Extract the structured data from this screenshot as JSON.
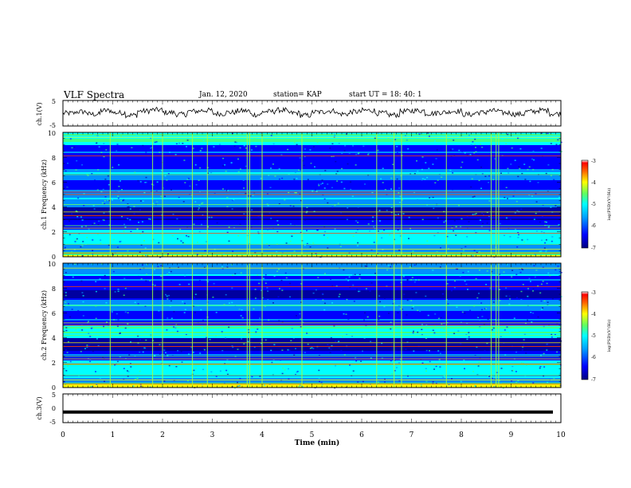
{
  "header": {
    "title": "VLF Spectra",
    "date": "Jan. 12, 2020",
    "station": "station= KAP",
    "start": "start UT = 18: 40: 1"
  },
  "colors": {
    "colormap": [
      "#0000a0",
      "#0000ff",
      "#0090ff",
      "#00ffff",
      "#40ff80",
      "#ffff00",
      "#ff8000",
      "#ff0000",
      "#ffffff"
    ],
    "trace": "#000000",
    "frame": "#000000"
  },
  "chart_data": [
    {
      "type": "line",
      "panel": "ch1-waveform",
      "ylabel": "ch.1(V)",
      "ylim": [
        -5,
        5
      ],
      "yticks": [
        "5",
        "-5"
      ],
      "xlim": [
        0,
        10
      ],
      "series": [
        {
          "values": [
            0.0,
            0.6,
            -0.4,
            1.1,
            0.2,
            -0.8,
            0.9,
            1.4,
            0.3,
            -0.5,
            0.8,
            1.2,
            -0.2,
            0.4,
            1.0,
            -0.6,
            0.7,
            1.3,
            0.1,
            -0.9,
            0.5,
            1.0,
            -0.3,
            0.6,
            1.2,
            0.0,
            -0.7,
            0.8,
            1.1,
            -0.1,
            0.4,
            0.9,
            -0.5,
            0.3,
            1.0,
            0.2,
            -0.4,
            0.7,
            1.2,
            -0.2
          ]
        }
      ]
    },
    {
      "type": "heatmap",
      "panel": "ch1-spectrogram",
      "ylabel": "ch.1 Frequency (kHz)",
      "ylim": [
        0,
        10
      ],
      "yticks": [
        "0",
        "2",
        "4",
        "6",
        "8",
        "10"
      ],
      "xlim": [
        0,
        10
      ],
      "colorbar": {
        "label": "log(PSD)(V²/Hz)",
        "range": [
          -7,
          -3
        ],
        "ticks": [
          "-3",
          "-4",
          "-5",
          "-6",
          "-7"
        ]
      }
    },
    {
      "type": "heatmap",
      "panel": "ch2-spectrogram",
      "ylabel": "ch.2 Frequency (kHz)",
      "ylim": [
        0,
        10
      ],
      "yticks": [
        "0",
        "2",
        "4",
        "6",
        "8",
        "10"
      ],
      "xlim": [
        0,
        10
      ],
      "colorbar": {
        "label": "log(PSD)(V²/Hz)",
        "range": [
          -7,
          -3
        ],
        "ticks": [
          "-3",
          "-4",
          "-5",
          "-6",
          "-7"
        ]
      }
    },
    {
      "type": "line",
      "panel": "ch3-waveform",
      "ylabel": "ch.3(V)",
      "ylim": [
        -5,
        5
      ],
      "yticks": [
        "5",
        "0",
        "-5"
      ],
      "xlim": [
        0,
        10
      ],
      "series": [
        {
          "values": [
            -1.5,
            -1.5
          ]
        }
      ]
    }
  ],
  "xaxis": {
    "label": "Time (min)",
    "ticks": [
      "0",
      "1",
      "2",
      "3",
      "4",
      "5",
      "6",
      "7",
      "8",
      "9",
      "10"
    ]
  }
}
